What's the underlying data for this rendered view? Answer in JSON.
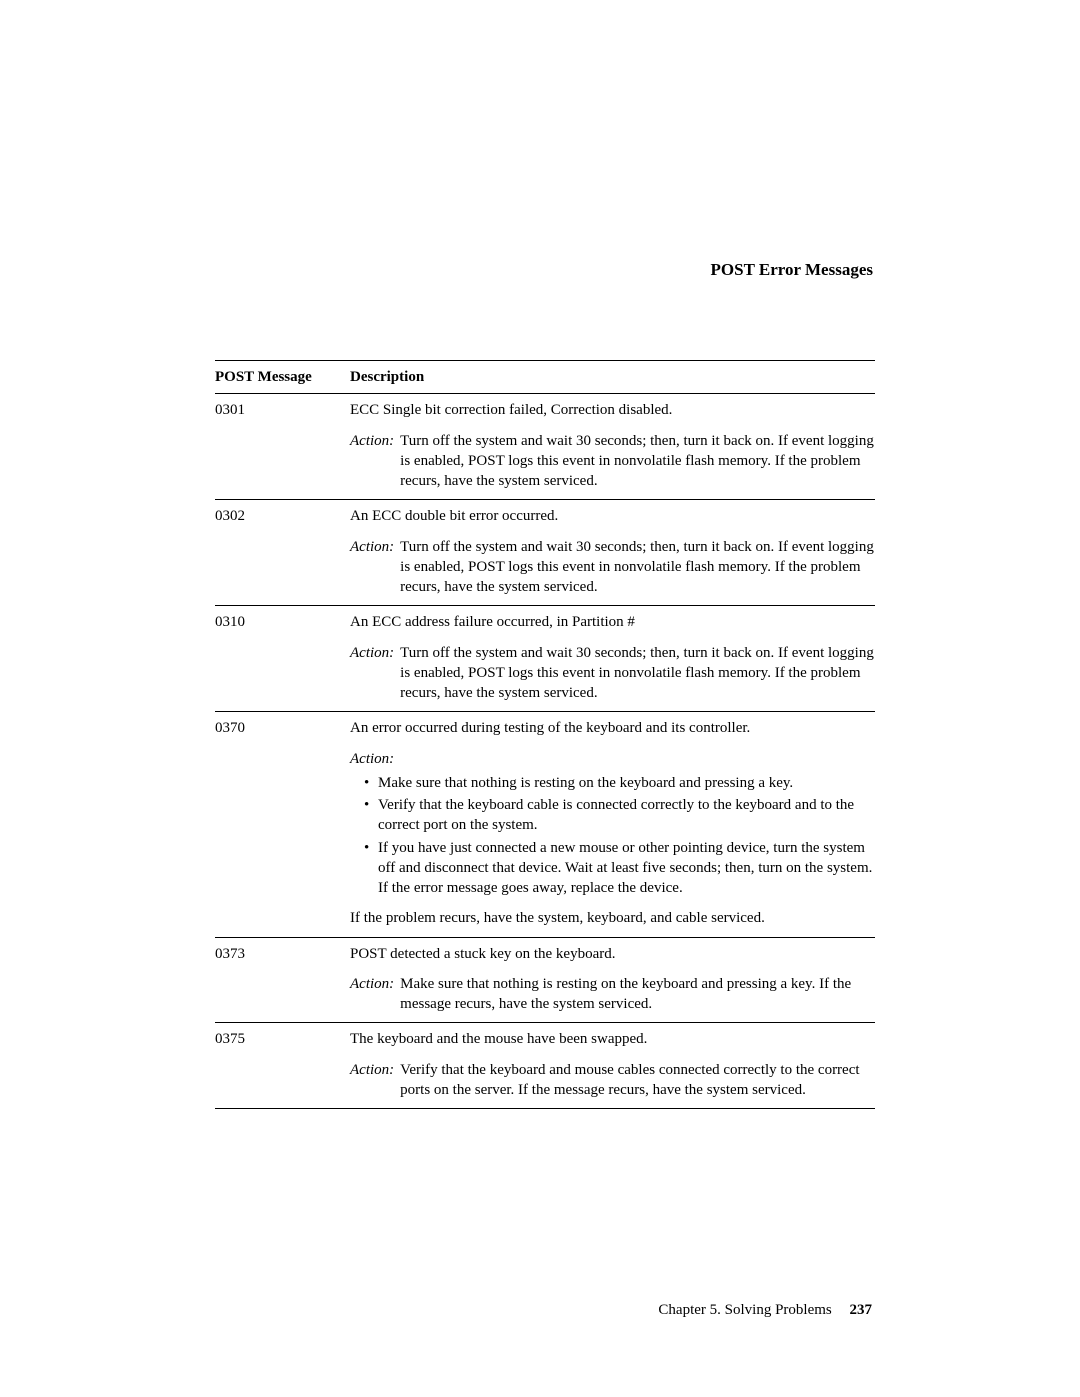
{
  "section_title": "POST Error Messages",
  "table": {
    "headers": {
      "col1": "POST Message",
      "col2": "Description"
    },
    "rows": [
      {
        "code": "0301",
        "description": "ECC Single bit correction failed, Correction disabled.",
        "action_label": "Action:",
        "action_text": "Turn off the system and wait 30 seconds; then, turn it back on. If event logging is enabled, POST logs this event in nonvolatile flash memory. If the problem recurs, have the system serviced."
      },
      {
        "code": "0302",
        "description": "An ECC double bit error occurred.",
        "action_label": "Action:",
        "action_text": "Turn off the system and wait 30 seconds; then, turn it back on. If event logging is enabled, POST logs this event in nonvolatile flash memory. If the problem recurs, have the system serviced."
      },
      {
        "code": "0310",
        "description": "An ECC address failure occurred, in Partition #",
        "action_label": "Action:",
        "action_text": "Turn off the system and wait 30 seconds; then, turn it back on. If event logging is enabled, POST logs this event in nonvolatile flash memory. If the problem recurs, have the system serviced."
      },
      {
        "code": "0370",
        "description": "An error occurred during testing of the keyboard and its controller.",
        "action_label_standalone": "Action:",
        "bullets": [
          "Make sure that nothing is resting on the keyboard and pressing a key.",
          "Verify that the keyboard cable is connected correctly to the keyboard and to the correct port on the system.",
          "If you have just connected a new mouse or other pointing device, turn the system off and disconnect that device. Wait at least five seconds; then, turn on the system. If the error message goes away, replace the device."
        ],
        "post_bullet": "If the problem recurs, have the system, keyboard, and cable serviced."
      },
      {
        "code": "0373",
        "description": "POST detected a stuck key on the keyboard.",
        "action_label": "Action:",
        "action_text": "Make sure that nothing is resting on the keyboard and pressing a key. If the message recurs, have the system serviced."
      },
      {
        "code": "0375",
        "description": "The keyboard and the mouse have been swapped.",
        "action_label": "Action:",
        "action_text": "Verify that the keyboard and mouse cables connected correctly to the correct ports on the server. If the message recurs, have the system serviced."
      }
    ]
  },
  "footer": {
    "chapter": "Chapter 5. Solving Problems",
    "page": "237"
  }
}
